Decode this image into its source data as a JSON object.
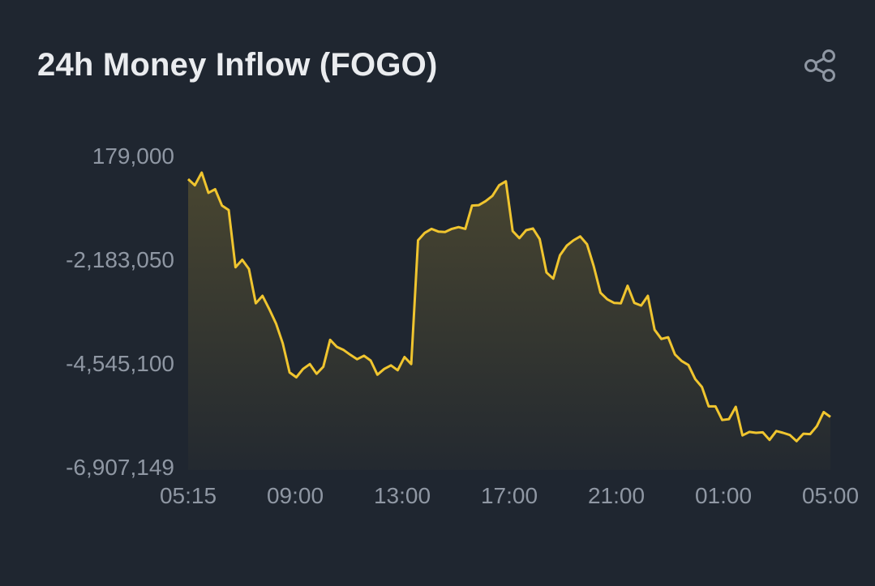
{
  "header": {
    "title": "24h Money Inflow (FOGO)",
    "share_icon": "share-icon"
  },
  "colors": {
    "background": "#1f2630",
    "line": "#f0c52f",
    "text": "#eaecef",
    "axis_text": "#8f97a3"
  },
  "chart_data": {
    "type": "area",
    "title": "24h Money Inflow (FOGO)",
    "y_ticks": [
      "179,000",
      "-2,183,050",
      "-4,545,100",
      "-6,907,149"
    ],
    "x_ticks": [
      "05:15",
      "09:00",
      "13:00",
      "17:00",
      "21:00",
      "01:00",
      "05:00"
    ],
    "ylim": [
      -6907149,
      179000
    ],
    "grid": false,
    "series": [
      {
        "values": [
          -300000,
          -440000,
          -150000,
          -610000,
          -530000,
          -900000,
          -1000000,
          -2300000,
          -2130000,
          -2340000,
          -3120000,
          -2950000,
          -3250000,
          -3580000,
          -4030000,
          -4690000,
          -4800000,
          -4610000,
          -4500000,
          -4720000,
          -4560000,
          -3950000,
          -4110000,
          -4180000,
          -4290000,
          -4390000,
          -4310000,
          -4420000,
          -4740000,
          -4610000,
          -4530000,
          -4640000,
          -4340000,
          -4500000,
          -1690000,
          -1520000,
          -1430000,
          -1490000,
          -1500000,
          -1430000,
          -1390000,
          -1430000,
          -900000,
          -890000,
          -800000,
          -680000,
          -440000,
          -350000,
          -1480000,
          -1640000,
          -1460000,
          -1420000,
          -1660000,
          -2420000,
          -2560000,
          -2030000,
          -1810000,
          -1690000,
          -1600000,
          -1780000,
          -2280000,
          -2880000,
          -3030000,
          -3110000,
          -3120000,
          -2720000,
          -3110000,
          -3170000,
          -2950000,
          -3720000,
          -3930000,
          -3890000,
          -4280000,
          -4430000,
          -4520000,
          -4840000,
          -5020000,
          -5460000,
          -5460000,
          -5770000,
          -5750000,
          -5470000,
          -6120000,
          -6040000,
          -6060000,
          -6050000,
          -6220000,
          -6020000,
          -6060000,
          -6110000,
          -6250000,
          -6080000,
          -6090000,
          -5910000,
          -5590000,
          -5700000
        ]
      }
    ]
  }
}
